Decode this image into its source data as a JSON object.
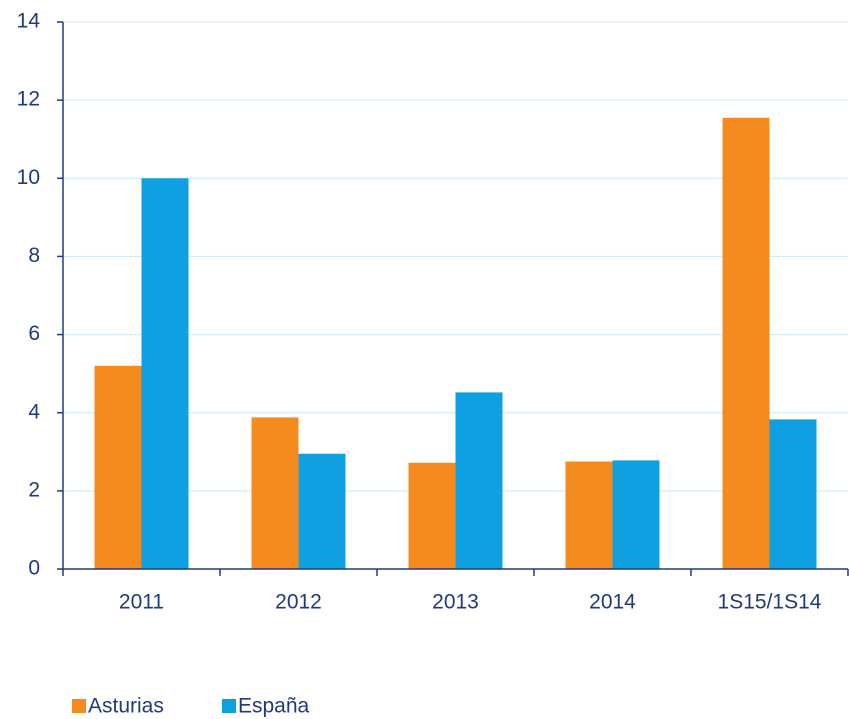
{
  "chart_data": {
    "type": "bar",
    "categories": [
      "2011",
      "2012",
      "2013",
      "2014",
      "1S15/1S14"
    ],
    "series": [
      {
        "name": "Asturias",
        "color": "#f58a1f",
        "values": [
          5.2,
          3.88,
          2.72,
          2.75,
          11.55
        ]
      },
      {
        "name": "España",
        "color": "#0ea0e0",
        "values": [
          10.0,
          2.95,
          4.52,
          2.78,
          3.83
        ]
      }
    ],
    "ylim": [
      0,
      14
    ],
    "yticks": [
      0,
      2,
      4,
      6,
      8,
      10,
      12,
      14
    ],
    "grid": true,
    "legend": "bottom"
  }
}
